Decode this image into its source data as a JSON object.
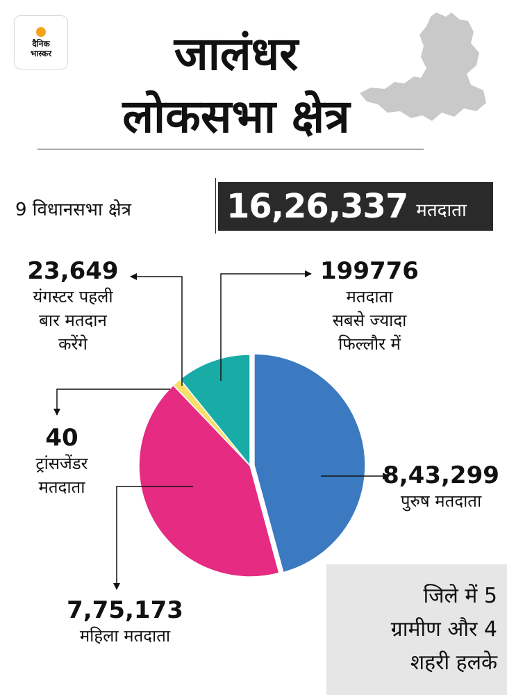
{
  "brand": {
    "line1": "दैनिक",
    "line2": "भास्कर"
  },
  "title": {
    "line1": "जालंधर",
    "line2": "लोकसभा क्षेत्र"
  },
  "summary": {
    "assembly": "9 विधानसभा क्षेत्र",
    "total_voters": "16,26,337",
    "total_unit": "मतदाता"
  },
  "labels": {
    "male": {
      "value": "8,43,299",
      "desc": "पुरुष मतदाता"
    },
    "female": {
      "value": "7,75,173",
      "desc": "महिला मतदाता"
    },
    "transgender": {
      "value": "40",
      "desc": "ट्रांसजेंडर\nमतदाता"
    },
    "youngsters": {
      "value": "23,649",
      "desc": "यंगस्टर पहली\nबार मतदान\nकरेंगे"
    },
    "phillaur": {
      "value": "199776",
      "desc": "मतदाता\nसबसे ज्यादा\nफिल्लौर में"
    }
  },
  "note": "जिले में 5\nग्रामीण और 4\nशहरी हलके",
  "colors": {
    "male": "#3b7ac1",
    "female": "#e52b82",
    "transgender": "#e52b82",
    "youngsters": "#f7df6a",
    "phillaur": "#19aca7",
    "map": "#c9c9c9"
  },
  "chart_data": {
    "type": "pie",
    "categories": [
      "पुरुष मतदाता",
      "महिला मतदाता",
      "ट्रांसजेंडर मतदाता",
      "यंगस्टर पहली बार मतदान करेंगे",
      "मतदाता सबसे ज्यादा फिल्लौर में"
    ],
    "values": [
      843299,
      775173,
      40,
      23649,
      199776
    ]
  }
}
